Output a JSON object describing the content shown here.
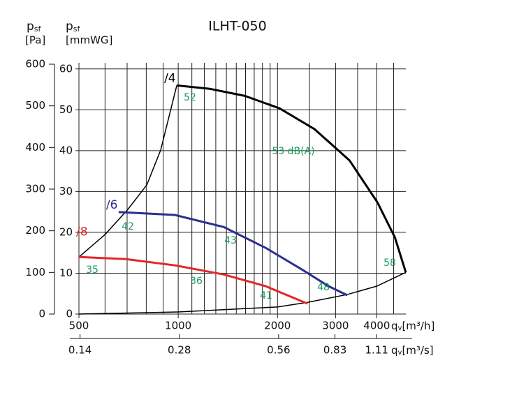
{
  "chart_data": {
    "type": "line",
    "title": "ILHT-050",
    "y_label": {
      "p": "p",
      "sub": "sf",
      "unit": "[Pa]"
    },
    "y2_label": {
      "p": "p",
      "sub": "sf",
      "unit": "[mmWG]"
    },
    "x_label": {
      "q": "q",
      "sub": "v",
      "unit": "[m³/h]"
    },
    "x2_label": {
      "q": "q",
      "sub": "v",
      "unit": "[m³/s]"
    },
    "log_x": true,
    "xlim": [
      500,
      4900
    ],
    "xticks": [
      500,
      1000,
      2000,
      3000,
      4000
    ],
    "xminor": [
      600,
      700,
      800,
      900,
      1100,
      1200,
      1300,
      1400,
      1500,
      1600,
      1700,
      1800,
      1900,
      2500,
      3500,
      4500
    ],
    "x2lim": [
      0.1389,
      1.3611
    ],
    "x2ticks": [
      0.14,
      0.28,
      0.56,
      0.83,
      1.11
    ],
    "ylim": [
      0,
      600
    ],
    "yticks": [
      0,
      100,
      200,
      300,
      400,
      500,
      600
    ],
    "y2lim": [
      0,
      61.16
    ],
    "y2ticks": [
      0,
      10,
      20,
      30,
      40,
      50,
      60
    ],
    "grid": true,
    "series": [
      {
        "name": "/4",
        "color": "#000000",
        "x": [
          990,
          1245,
          1591,
          2029,
          2591,
          3307,
          4020,
          4540,
          4900
        ],
        "values": [
          549,
          541,
          524,
          494,
          444,
          369,
          268,
          184,
          100
        ]
      },
      {
        "name": "/6",
        "color": "#2b2f8f",
        "x": [
          660,
          976,
          1374,
          1841,
          2349,
          2856,
          3258
        ],
        "values": [
          245,
          238,
          209,
          159,
          109,
          67,
          45
        ]
      },
      {
        "name": "/8",
        "color": "#e4262a",
        "x": [
          500,
          694,
          976,
          1374,
          1841,
          2467
        ],
        "values": [
          137,
          132,
          117,
          95,
          67,
          25
        ]
      }
    ],
    "boundary": {
      "color": "#000000",
      "x": [
        500,
        600,
        703,
        803,
        885,
        990
      ],
      "values": [
        137,
        191,
        251,
        310,
        394,
        549
      ]
    },
    "system_curve": {
      "color": "#000000",
      "x": [
        500,
        1000,
        2000,
        2467,
        3258,
        4000,
        4900
      ],
      "values": [
        0,
        5,
        17,
        28,
        47,
        67,
        100
      ]
    },
    "annotations": [
      "52",
      "53 dB(A)",
      "58",
      "42",
      "43",
      "48",
      "35",
      "36",
      "41"
    ]
  }
}
